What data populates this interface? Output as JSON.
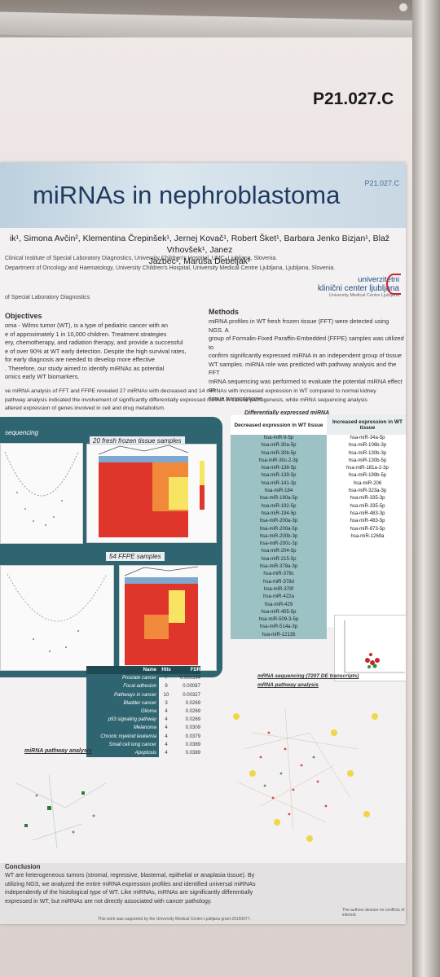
{
  "poster_id": "P21.027.C",
  "banner_id": "P21.027.C",
  "title": "miRNAs in nephroblastoma",
  "authors_line1": "ik¹, Simona Avčin², Klementina Črepinšek¹, Jernej Kovač¹, Robert Šket¹, Barbara Jenko Bizjan¹, Blaž Vrhovšek¹, Janez",
  "authors_line2": "Jazbec², Maruša Debeljak¹",
  "affiliation1": "Clinical Institute of Special Laboratory Diagnostics, University Children's Hospital, UMC, Ljubljana, Slovenia.",
  "affiliation2": "Department of Oncology and Haematology, University Children's Hospital, University Medical Centre Ljubljana, Ljubljana, Slovenia.",
  "affiliation3": "of Special Laboratory Diagnostics",
  "logo_line1": "univerzitetni",
  "logo_line2": "klinični center ljubljana",
  "logo_line3": "University Medical Centre Ljubljana",
  "objectives_heading": "Objectives",
  "objectives_lines": [
    "oma - Wilms tumor (WT), is a type of pediatric cancer with an",
    "e of approximately 1 in 10,000 children. Treatment strategies",
    "ery, chemotherapy, and radiation therapy, and provide a successful",
    "e of over 90% at WT early detection. Despite the high survival rates,",
    "for early diagnosis are needed to develop more effective",
    ". Therefore, our study aimed to identify miRNAs as potential",
    "omics early WT biomarkers."
  ],
  "methods_heading": "Methods",
  "methods_lines": [
    "miRNA profiles in WT fresh frozen tissue (FFT) were detected using NGS. A",
    "group of Formalin-Fixed Paraffin-Embedded (FFPE) samples was utilized to",
    "confirm significantly expressed miRNA in an independent group of tissue",
    "WT samples. miRNA role was predicted with pathway analysis and the FFT",
    "mRNA sequencing was performed to evaluate the potential miRNA effect on",
    "tissue transcriptome."
  ],
  "results_lines": [
    "ve miRNA analysis of FFT and FFPE revealed 27 miRNAs with decreased and 14 miRNAs with increased expression in WT compared to normal kidney",
    "pathway analysis indicated the involvement of significantly differentially expressed miRNA in cancer pathogenesis, while mRNA sequencing analysis",
    "altered expression of genes involved in cell and drug metabolism."
  ],
  "panel_header": "sequencing",
  "panel_fft_label": "20 fresh frozen tissue samples",
  "panel_ffpe_label": "54 FFPE samples",
  "table_title": "Differentially expressed miRNA",
  "table_col_dec": "Decreased expression in WT tissue",
  "table_col_inc": "Increased expression in WT tissue",
  "decreased": [
    "hsa-miR-9-5p",
    "hsa-miR-30a-5p",
    "hsa-miR-30b-5p",
    "hsa-miR-30c-2-3p",
    "hsa-miR-138-5p",
    "hsa-miR-139-5p",
    "hsa-miR-141-3p",
    "hsa-miR-184",
    "hsa-miR-190a-5p",
    "hsa-miR-192-5p",
    "hsa-miR-194-5p",
    "hsa-miR-200a-3p",
    "hsa-miR-200a-5p",
    "hsa-miR-200b-3p",
    "hsa-miR-200c-3p",
    "hsa-miR-204-5p",
    "hsa-miR-215-5p",
    "hsa-miR-378a-3p",
    "hsa-miR-378c",
    "hsa-miR-378d",
    "hsa-miR-378f",
    "hsa-miR-422a",
    "hsa-miR-429",
    "hsa-miR-455-5p",
    "hsa-miR-509-3-5p",
    "hsa-miR-514a-3p",
    "hsa-miR-12135"
  ],
  "increased": [
    "hsa-miR-34a-5p",
    "hsa-miR-106b-3p",
    "hsa-miR-130b-3p",
    "hsa-miR-130b-5p",
    "hsa-miR-181a-2-3p",
    "hsa-miR-199b-5p",
    "hsa-miR-206",
    "hsa-miR-323a-3p",
    "hsa-miR-335-3p",
    "hsa-miR-335-5p",
    "hsa-miR-483-3p",
    "hsa-miR-483-5p",
    "hsa-miR-873-5p",
    "hsa-miR-1269a"
  ],
  "pathway_table": {
    "headers": [
      "Name",
      "Hits",
      "FDR"
    ],
    "rows": [
      [
        "Prostate cancer",
        "7",
        "0.000394"
      ],
      [
        "Focal adhesion",
        "9",
        "0.00087"
      ],
      [
        "Pathways in cancer",
        "10",
        "0.00327"
      ],
      [
        "Bladder cancer",
        "3",
        "0.0269"
      ],
      [
        "Glioma",
        "4",
        "0.0269"
      ],
      [
        "p53 signaling pathway",
        "4",
        "0.0269"
      ],
      [
        "Melanoma",
        "4",
        "0.0309"
      ],
      [
        "Chronic myeloid leukemia",
        "4",
        "0.0379"
      ],
      [
        "Small cell lung cancer",
        "4",
        "0.0389"
      ],
      [
        "Apoptosis",
        "4",
        "0.0389"
      ]
    ]
  },
  "mirna_pathway_label": "miRNA pathway analysis",
  "mrna_seq_label": "mRNA sequencing (7207 DE transcripts)",
  "mrna_pathway_label": "mRNA pathway analysis",
  "conclusion_heading": "Conclusion",
  "conclusion_lines": [
    "WT are heterogeneous tumors (stromal, regressive, blastemal, epithelial or anaplasia tissue). By",
    "utilizing NGS, we analyzed the entire miRNA expression profiles and identified universal miRNAs",
    "independently of the histological type of WT. Like miRNAs, mRNAs are significantly differentially",
    "expressed in WT, but miRNAs are not directly associated with cancer pathology."
  ],
  "footer_support": "This work was supported by the University Medical Centre Ljubljana grant 20150077.",
  "footer_conflict": "The authors declare no conflicts of interest."
}
